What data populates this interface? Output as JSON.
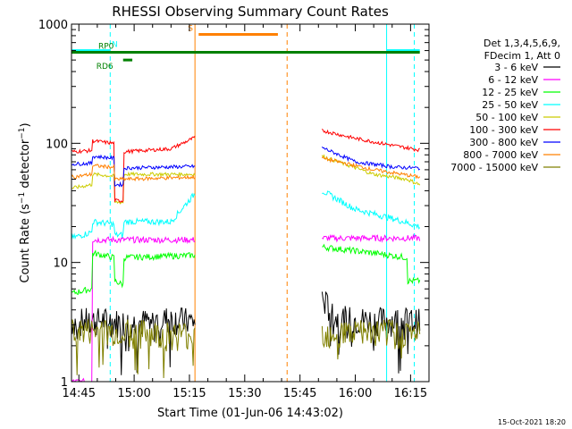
{
  "chart_data": {
    "type": "line",
    "title": "RHESSI Observing Summary Count Rates",
    "xlabel": "Start Time (01-Jun-06 14:43:02)",
    "ylabel_main": "Count Rate (s",
    "ylabel_sup1": "−1",
    "ylabel_mid": " detector",
    "ylabel_sup2": "−1",
    "ylabel_end": ")",
    "y_scale": "log",
    "ylim": [
      1,
      1000
    ],
    "xlim_minutes_after_1445": [
      -2.0,
      95.0
    ],
    "x_ticks": [
      {
        "label": "14:45",
        "value": 0
      },
      {
        "label": "15:00",
        "value": 15
      },
      {
        "label": "15:15",
        "value": 30
      },
      {
        "label": "15:30",
        "value": 45
      },
      {
        "label": "15:45",
        "value": 60
      },
      {
        "label": "16:00",
        "value": 75
      },
      {
        "label": "16:15",
        "value": 90
      }
    ],
    "y_ticks": [
      {
        "label": "1",
        "value": 1
      },
      {
        "label": "10",
        "value": 10
      },
      {
        "label": "100",
        "value": 100
      },
      {
        "label": "1000",
        "value": 1000
      }
    ],
    "legend_header": [
      "Det 1,3,4,5,6,9,",
      "FDecim 1, Att 0"
    ],
    "legend_position": "right",
    "series": [
      {
        "name": "3 - 6 keV",
        "color": "#000000",
        "segments": [
          [
            -2,
            3.2
          ],
          [
            6,
            3.3
          ],
          [
            14,
            3.1
          ],
          [
            25,
            3.4
          ],
          [
            31.5,
            3.2
          ],
          [
            66,
            5.0
          ],
          [
            70,
            3.4
          ],
          [
            80,
            3.3
          ],
          [
            89,
            3.3
          ],
          [
            92.5,
            3.2
          ]
        ]
      },
      {
        "name": "6 - 12 keV",
        "color": "#ff00ff",
        "segments": [
          [
            -2,
            1.0
          ],
          [
            3.5,
            1.0
          ],
          [
            3.7,
            15.5
          ],
          [
            14,
            15.5
          ],
          [
            31.5,
            15.5
          ],
          [
            66,
            16.0
          ],
          [
            92.5,
            16.0
          ]
        ]
      },
      {
        "name": "12 - 25 keV",
        "color": "#00ff00",
        "segments": [
          [
            -2,
            5.5
          ],
          [
            3.5,
            6.0
          ],
          [
            3.7,
            12.0
          ],
          [
            9.5,
            11.0
          ],
          [
            9.7,
            7.0
          ],
          [
            12,
            6.5
          ],
          [
            12.2,
            11.0
          ],
          [
            31.5,
            11.5
          ],
          [
            66,
            13.5
          ],
          [
            80,
            12.0
          ],
          [
            89,
            11.0
          ],
          [
            89.2,
            7.0
          ],
          [
            92.5,
            7.0
          ]
        ]
      },
      {
        "name": "25 - 50 keV",
        "color": "#00ffff",
        "segments": [
          [
            -2,
            16
          ],
          [
            3.5,
            18
          ],
          [
            3.7,
            22
          ],
          [
            9.5,
            21
          ],
          [
            9.7,
            17
          ],
          [
            12,
            17
          ],
          [
            12.2,
            22
          ],
          [
            25,
            22
          ],
          [
            31.5,
            38
          ],
          [
            66,
            40
          ],
          [
            75,
            28
          ],
          [
            86,
            23
          ],
          [
            92.5,
            20
          ]
        ]
      },
      {
        "name": "50 - 100 keV",
        "color": "#cccc00",
        "segments": [
          [
            -2,
            42
          ],
          [
            3.5,
            45
          ],
          [
            3.7,
            55
          ],
          [
            9.5,
            53
          ],
          [
            9.7,
            32
          ],
          [
            12,
            32
          ],
          [
            12.2,
            55
          ],
          [
            31.5,
            55
          ],
          [
            66,
            78
          ],
          [
            80,
            55
          ],
          [
            89,
            50
          ],
          [
            92.5,
            45
          ]
        ]
      },
      {
        "name": "100 - 300 keV",
        "color": "#ff0000",
        "segments": [
          [
            -2,
            85
          ],
          [
            3.5,
            87
          ],
          [
            3.7,
            105
          ],
          [
            9.5,
            100
          ],
          [
            9.7,
            33
          ],
          [
            12,
            33
          ],
          [
            12.2,
            85
          ],
          [
            25,
            90
          ],
          [
            31.5,
            112
          ],
          [
            66,
            128
          ],
          [
            75,
            110
          ],
          [
            86,
            95
          ],
          [
            92.5,
            88
          ]
        ]
      },
      {
        "name": "300 - 800 keV",
        "color": "#0000ff",
        "segments": [
          [
            -2,
            67
          ],
          [
            3.5,
            68
          ],
          [
            3.7,
            78
          ],
          [
            9.5,
            75
          ],
          [
            9.7,
            45
          ],
          [
            12,
            45
          ],
          [
            12.2,
            62
          ],
          [
            31.5,
            64
          ],
          [
            66,
            92
          ],
          [
            75,
            70
          ],
          [
            86,
            63
          ],
          [
            92.5,
            62
          ]
        ]
      },
      {
        "name": "800 - 7000 keV",
        "color": "#ff8000",
        "segments": [
          [
            -2,
            52
          ],
          [
            3.5,
            55
          ],
          [
            3.7,
            65
          ],
          [
            9.5,
            63
          ],
          [
            9.7,
            50
          ],
          [
            12.2,
            50
          ],
          [
            31.5,
            52
          ],
          [
            66,
            75
          ],
          [
            80,
            60
          ],
          [
            92.5,
            52
          ]
        ]
      },
      {
        "name": "7000 - 15000 keV",
        "color": "#808000",
        "segments": [
          [
            -2,
            2.7
          ],
          [
            14,
            2.6
          ],
          [
            25,
            2.5
          ],
          [
            31.5,
            2.5
          ],
          [
            66,
            2.6
          ],
          [
            80,
            2.6
          ],
          [
            92.5,
            2.6
          ]
        ]
      }
    ],
    "flag_bars": [
      {
        "label": "N",
        "color": "#00ffff",
        "ranges": [
          [
            -2,
            8.5
          ],
          [
            83.5,
            92.5
          ]
        ],
        "value": 600
      },
      {
        "label": "RD6",
        "color": "#008000",
        "ranges": [
          [
            12,
            14.5
          ]
        ],
        "value": 500
      },
      {
        "label": "RP0",
        "color": "#008000",
        "ranges": [
          [
            -2,
            92.5
          ]
        ],
        "value": 580
      },
      {
        "label": "S",
        "color": "#ff8000",
        "ranges": [
          [
            32.5,
            54.0
          ]
        ],
        "value": 820
      }
    ],
    "vertical_lines": [
      {
        "minute": -2.0,
        "color": "#00ffff",
        "dash": false
      },
      {
        "minute": 8.5,
        "color": "#00ffff",
        "dash": true
      },
      {
        "minute": 31.5,
        "color": "#ff8000",
        "dash": false
      },
      {
        "minute": 56.5,
        "color": "#ff8000",
        "dash": true
      },
      {
        "minute": 83.5,
        "color": "#00ffff",
        "dash": false
      },
      {
        "minute": 91.0,
        "color": "#00ffff",
        "dash": true
      }
    ],
    "data_gap_minutes": [
      31.5,
      66.0
    ]
  },
  "footer": {
    "timestamp": "15-Oct-2021 18:20"
  }
}
